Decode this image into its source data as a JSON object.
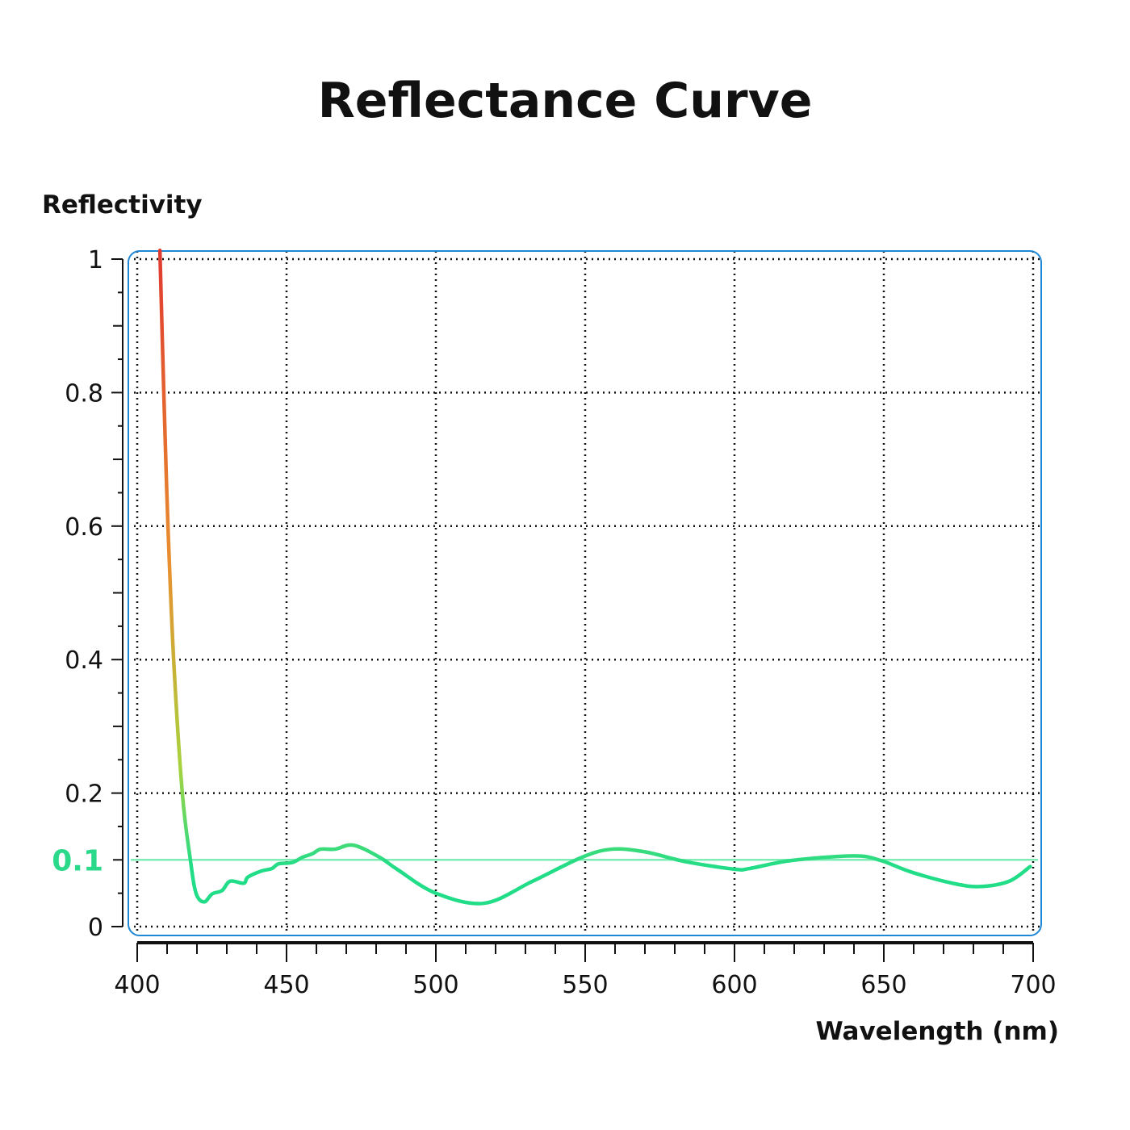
{
  "chart_data": {
    "type": "line",
    "title": "Reflectance Curve",
    "xlabel": "Wavelength (nm)",
    "ylabel": "Reflectivity",
    "xlim": [
      400,
      700
    ],
    "ylim": [
      0,
      1
    ],
    "xticks": [
      400,
      450,
      500,
      550,
      600,
      650,
      700
    ],
    "xtick_labels": [
      "400",
      "450",
      "500",
      "550",
      "600",
      "650",
      "700"
    ],
    "yticks": [
      0,
      0.2,
      0.4,
      0.6,
      0.8,
      1
    ],
    "ytick_labels": [
      "0",
      "0.2",
      "0.4",
      "0.6",
      "0.8",
      "1"
    ],
    "grid": true,
    "reference_line": {
      "value": 0.1,
      "label": "0.1",
      "color": "#7eecb5",
      "label_color": "#2bd98a"
    },
    "series": [
      {
        "color_gradient": [
          "#e03a2f",
          "#e8902f",
          "#a8d23e",
          "#22dd88"
        ],
        "x": [
          407.6,
          408.9,
          410.3,
          412.2,
          415.1,
          417.8,
          419.7,
          422.4,
          425.1,
          428.4,
          431.1,
          435.7,
          437.0,
          441.4,
          445.1,
          447.3,
          451.9,
          455.4,
          458.6,
          461.4,
          466.2,
          472.4,
          481.1,
          487.3,
          500,
          516.2,
          532.4,
          549,
          559,
          570,
          584,
          600,
          605,
          619,
          640,
          649,
          659,
          673,
          682,
          692,
          699
        ],
        "y": [
          1.013,
          0.8,
          0.6,
          0.4,
          0.2,
          0.1,
          0.05,
          0.037,
          0.049,
          0.054,
          0.068,
          0.065,
          0.074,
          0.083,
          0.087,
          0.094,
          0.096,
          0.104,
          0.109,
          0.116,
          0.116,
          0.122,
          0.104,
          0.085,
          0.05,
          0.035,
          0.068,
          0.104,
          0.116,
          0.112,
          0.097,
          0.086,
          0.087,
          0.099,
          0.106,
          0.099,
          0.082,
          0.065,
          0.06,
          0.068,
          0.09
        ]
      }
    ],
    "frame_color": "#1e88d6"
  }
}
